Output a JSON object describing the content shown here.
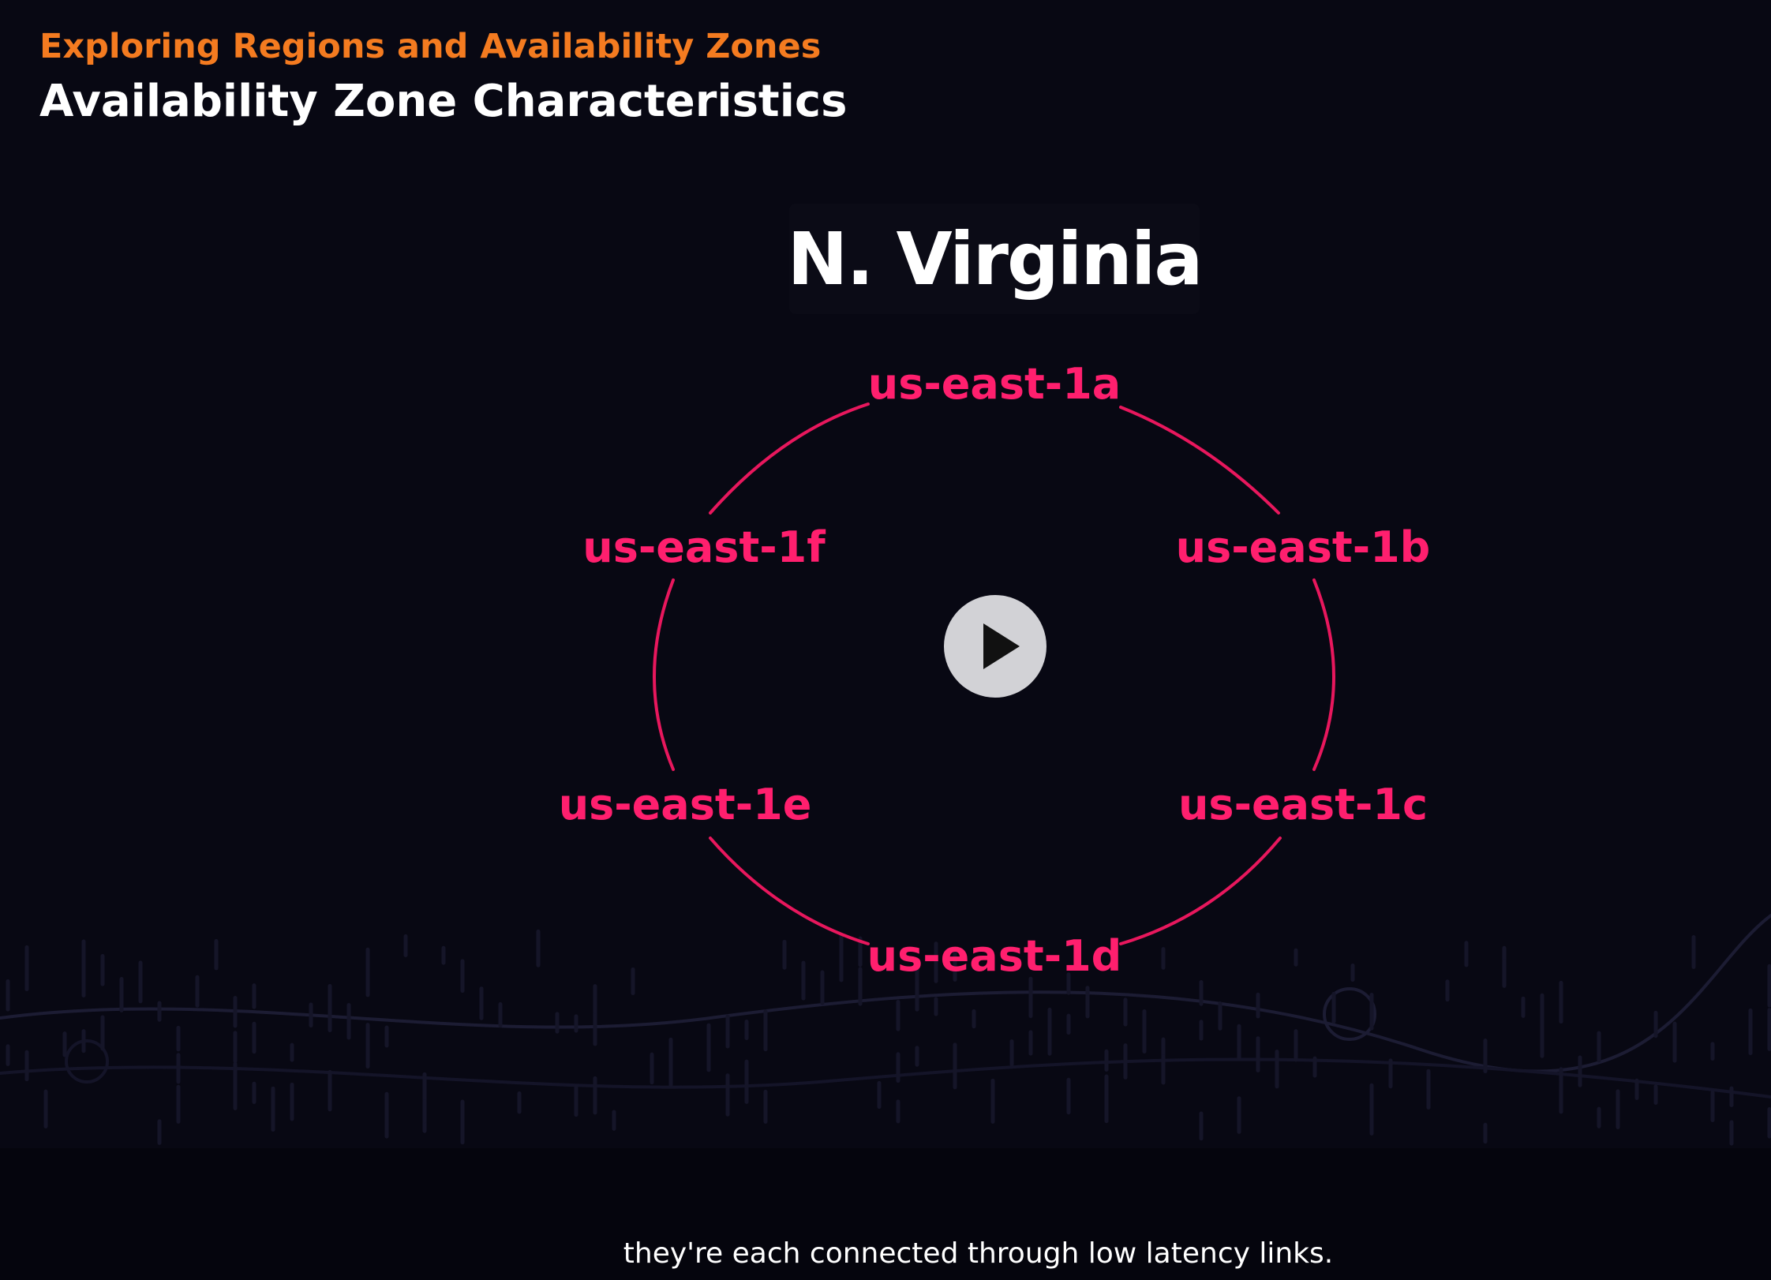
{
  "slide": {
    "kicker": "Exploring Regions and Availability Zones",
    "title": "Availability Zone Characteristics",
    "region_name": "N. Virginia",
    "availability_zones": [
      "us-east-1a",
      "us-east-1b",
      "us-east-1c",
      "us-east-1d",
      "us-east-1e",
      "us-east-1f"
    ]
  },
  "player": {
    "play_icon": "play-icon"
  },
  "caption": {
    "text": "they're each connected through low latency links."
  },
  "colors": {
    "kicker": "#f47b20",
    "zone": "#ff1f6e",
    "background": "#080813",
    "play_button": "#d2d2d6"
  }
}
